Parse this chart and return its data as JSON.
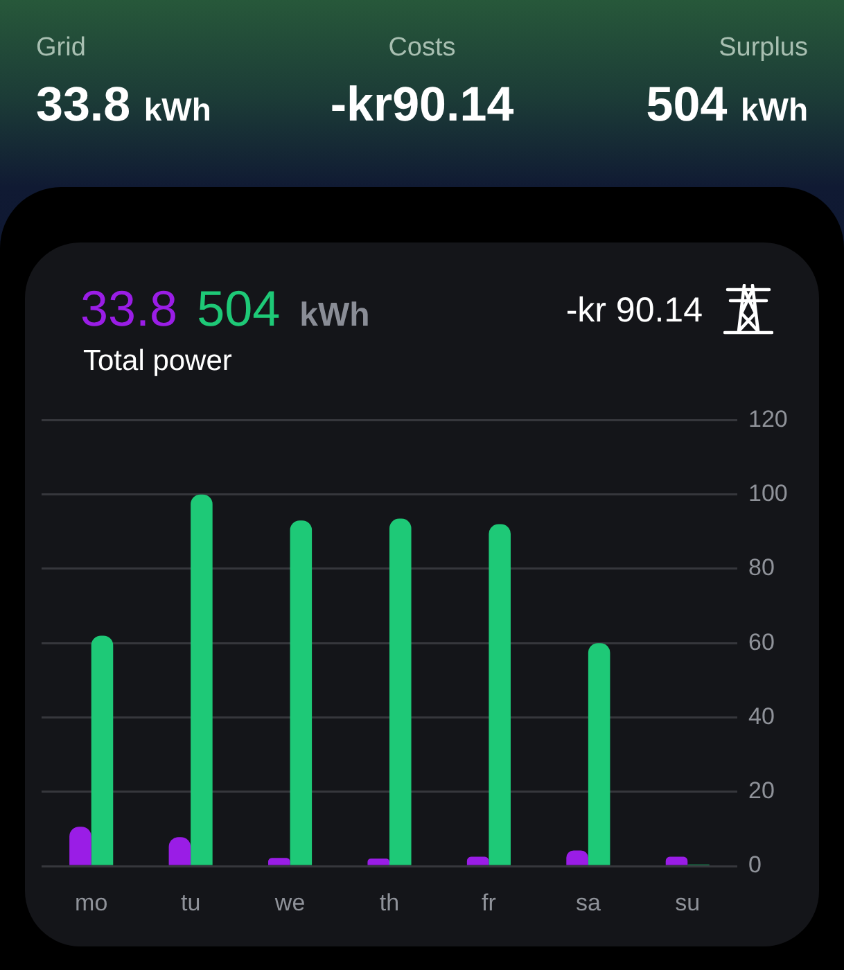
{
  "chart_data": {
    "type": "bar",
    "title": "Total power",
    "annotations": [
      "Grid",
      "33.8",
      "kWh",
      "Costs",
      "-kr90.14",
      "Surplus",
      "504",
      "kWh",
      "33.8",
      "504",
      "kWh",
      "-kr 90.14"
    ],
    "categories": [
      "mo",
      "tu",
      "we",
      "th",
      "fr",
      "sa",
      "su"
    ],
    "series": [
      {
        "color": "#9a1de6",
        "values": [
          10.6,
          7.8,
          2.2,
          2.0,
          2.5,
          4.2,
          2.5
        ]
      },
      {
        "color": "#1ec977",
        "values": [
          62,
          100,
          93,
          93.5,
          92,
          60,
          0.4
        ]
      }
    ],
    "ylim": [
      0,
      120
    ],
    "yticks": [
      0,
      20,
      40,
      60,
      80,
      100,
      120
    ],
    "grid": "y"
  }
}
